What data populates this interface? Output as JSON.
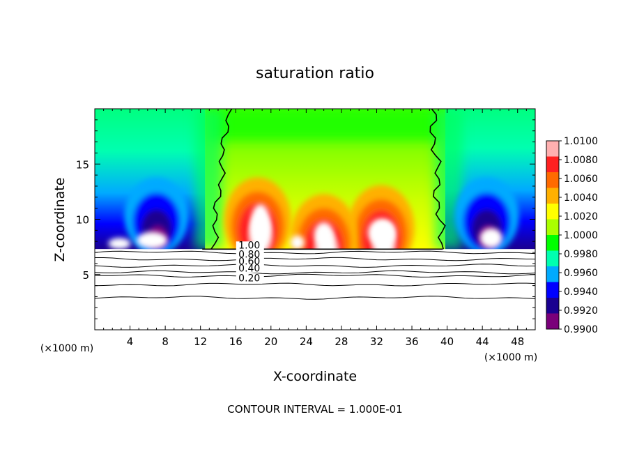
{
  "chart_data": {
    "type": "heatmap",
    "title": "saturation ratio",
    "xlabel": "X-coordinate",
    "ylabel": "Z-coordinate",
    "x_unit": "(×1000 m)",
    "xlim": [
      0,
      50
    ],
    "ylim": [
      0,
      20
    ],
    "x_ticks": [
      4,
      8,
      12,
      16,
      20,
      24,
      28,
      32,
      36,
      40,
      44,
      48
    ],
    "y_ticks": [
      5,
      10,
      15
    ],
    "footer": "CONTOUR INTERVAL = 1.000E-01",
    "colorbar": {
      "values": [
        1.01,
        1.008,
        1.006,
        1.004,
        1.002,
        1.0,
        0.998,
        0.996,
        0.994,
        0.992,
        0.99
      ],
      "labels": [
        "1.0100",
        "1.0080",
        "1.0060",
        "1.0040",
        "1.0020",
        "1.0000",
        "0.9980",
        "0.9960",
        "0.9940",
        "0.9920",
        "0.9900"
      ],
      "colors": [
        "#ffb0b0",
        "#ff2020",
        "#ff6a00",
        "#ffb000",
        "#ffff00",
        "#aaff00",
        "#00ff00",
        "#00ffb0",
        "#00aaff",
        "#0000ff",
        "#1a0090",
        "#7a007a"
      ]
    },
    "contours": [
      {
        "label": "1.00",
        "z": 7.3,
        "x_label": 16.2
      },
      {
        "label": "0.80",
        "z": 6.7,
        "x_label": 16.2
      },
      {
        "label": "0.60",
        "z": 6.1,
        "x_label": 16.2
      },
      {
        "label": "0.40",
        "z": 5.5,
        "x_label": 16.2
      },
      {
        "label": "0.20",
        "z": 4.4,
        "x_label": 16.2
      }
    ],
    "saturation_line_x": [
      14.5,
      39.0
    ],
    "features": [
      {
        "type": "warm",
        "x": 18.5,
        "z": 10.5,
        "value": 1.008
      },
      {
        "type": "warm",
        "x": 32.5,
        "z": 9.8,
        "value": 1.007
      },
      {
        "type": "warm",
        "x": 26,
        "z": 9,
        "value": 1.006
      },
      {
        "type": "cold",
        "x": 7,
        "z": 10,
        "value": 0.992
      },
      {
        "type": "cold",
        "x": 44.5,
        "z": 10,
        "value": 0.992
      }
    ]
  }
}
